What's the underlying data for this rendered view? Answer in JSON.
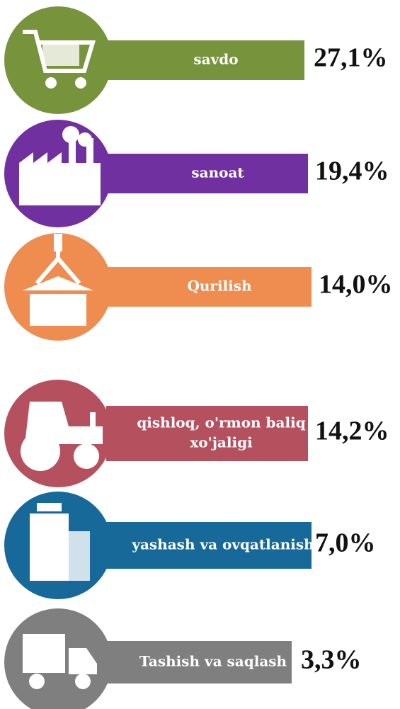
{
  "items": [
    {
      "label": [
        "savdo"
      ],
      "value": "27,1%",
      "color": "#77933c"
    },
    {
      "label": [
        "sanoat"
      ],
      "value": "19,4%",
      "color": "#7030a0"
    },
    {
      "label": [
        "Qurilish"
      ],
      "value": "14,0%",
      "color": "#ef8c50"
    },
    {
      "label": [
        "qishloq, o'rmon baliq",
        "xo'jaligi"
      ],
      "value": "14,2%",
      "color": "#b5505e"
    },
    {
      "label": [
        "yashash va ovqatlanish"
      ],
      "value": "7,0%",
      "color": "#17699a"
    },
    {
      "label": [
        "Tashish va saqlash"
      ],
      "value": "3,3%",
      "color": "#7f7f7f"
    }
  ]
}
